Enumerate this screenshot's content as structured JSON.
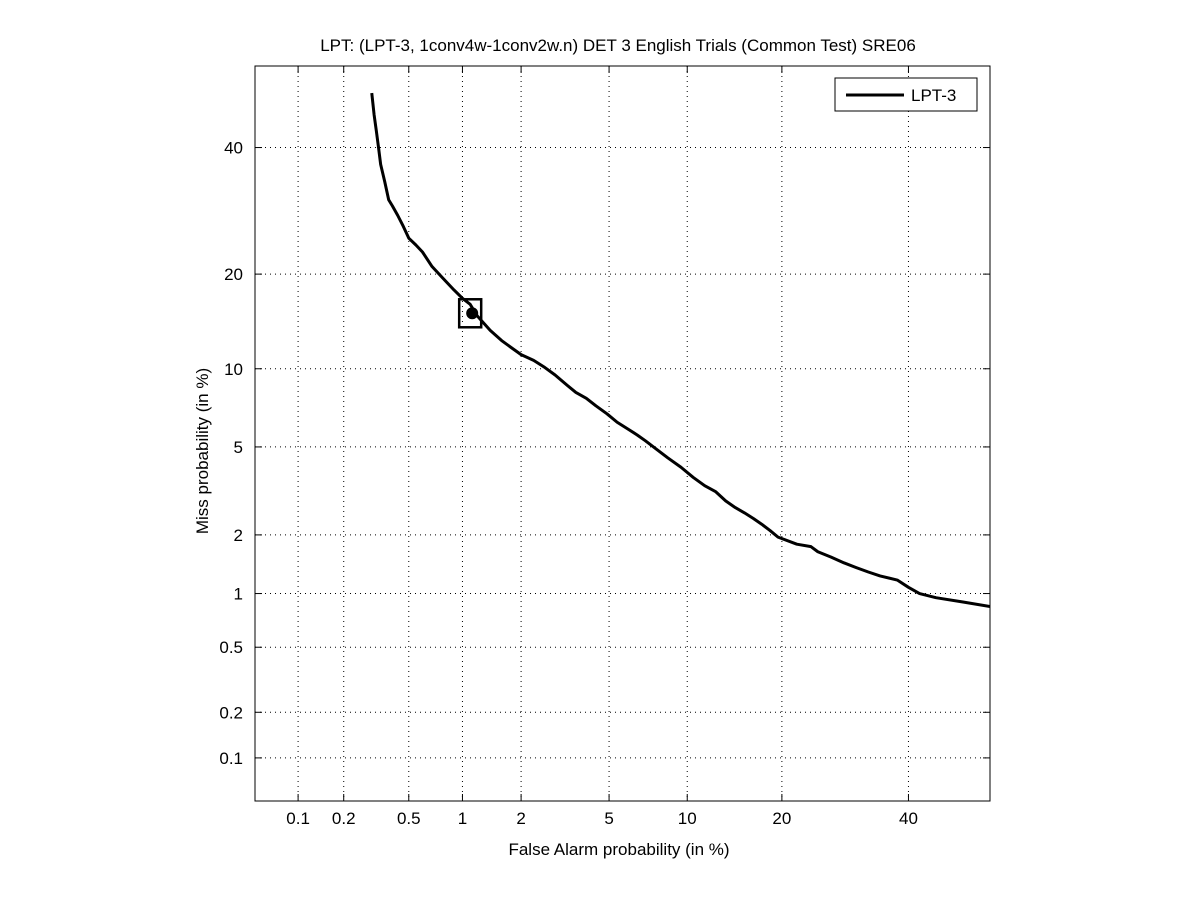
{
  "chart_data": {
    "type": "line",
    "title": "LPT: (LPT-3, 1conv4w-1conv2w.n) DET 3 English Trials (Common Test) SRE06",
    "xlabel": "False Alarm probability (in %)",
    "ylabel": "Miss probability (in %)",
    "xscale": "probit",
    "yscale": "probit",
    "xlim": [
      0.05,
      55
    ],
    "ylim": [
      0.05,
      55
    ],
    "x_ticks": [
      0.1,
      0.2,
      0.5,
      1,
      2,
      5,
      10,
      20,
      40
    ],
    "x_tick_labels": [
      "0.1",
      "0.2",
      "0.5",
      "1",
      "2",
      "5",
      "10",
      "20",
      "40"
    ],
    "y_ticks": [
      0.1,
      0.2,
      0.5,
      1,
      2,
      5,
      10,
      20,
      40
    ],
    "y_tick_labels": [
      "0.1",
      "0.2",
      "0.5",
      "1",
      "2",
      "5",
      "10",
      "20",
      "40"
    ],
    "grid": true,
    "legend_position": "top-right",
    "series": [
      {
        "name": "LPT-3",
        "color": "#000000",
        "x": [
          0.3,
          0.31,
          0.32,
          0.33,
          0.34,
          0.36,
          0.38,
          0.4,
          0.43,
          0.46,
          0.5,
          0.55,
          0.6,
          0.68,
          0.78,
          0.9,
          1.0,
          1.1,
          1.2,
          1.4,
          1.6,
          1.8,
          2.0,
          2.3,
          2.6,
          2.9,
          3.3,
          3.6,
          4.0,
          4.4,
          4.9,
          5.4,
          6.0,
          6.5,
          7.0,
          7.7,
          8.5,
          9.5,
          10.5,
          11.5,
          12.5,
          13.5,
          14.5,
          15.5,
          16.5,
          17.5,
          18.5,
          19.5,
          22,
          24,
          25,
          27,
          29,
          31,
          33,
          35,
          38,
          40,
          42,
          45,
          50,
          55
        ],
        "y": [
          50,
          46,
          43,
          40,
          37,
          34,
          31,
          30,
          28.5,
          27,
          25,
          24,
          23,
          21,
          19.5,
          18,
          17,
          16.3,
          15,
          13.5,
          12.5,
          11.8,
          11.2,
          10.7,
          10.1,
          9.5,
          8.7,
          8.2,
          7.8,
          7.3,
          6.8,
          6.3,
          5.9,
          5.6,
          5.3,
          4.9,
          4.5,
          4.1,
          3.7,
          3.4,
          3.2,
          2.9,
          2.7,
          2.55,
          2.4,
          2.25,
          2.1,
          1.95,
          1.8,
          1.75,
          1.65,
          1.55,
          1.45,
          1.37,
          1.3,
          1.24,
          1.18,
          1.08,
          1.0,
          0.95,
          0.9,
          0.85
        ]
      }
    ],
    "markers": [
      {
        "x": 1.1,
        "y": 15.3
      }
    ]
  }
}
